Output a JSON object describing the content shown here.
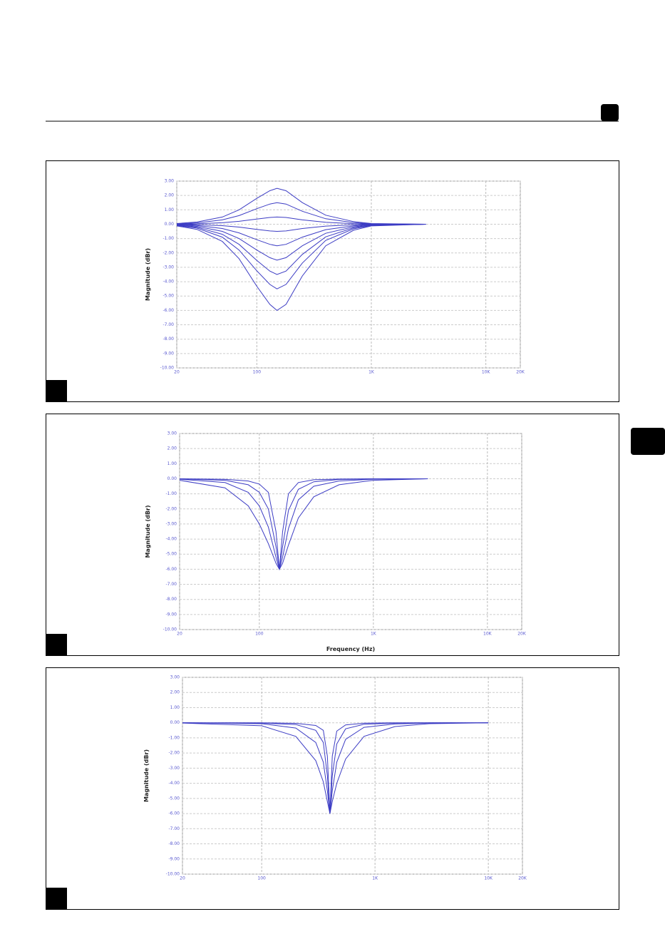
{
  "chart_data": [
    {
      "type": "line",
      "ylabel": "Magnitude (dBr)",
      "log_x": true,
      "grid": true,
      "color": "#3c3cc4",
      "xlim": [
        20,
        20000
      ],
      "ylim": [
        -10,
        3
      ],
      "xticks": [
        20,
        100,
        {
          "value": 1000,
          "label": "1K"
        },
        {
          "value": 10000,
          "label": "10K"
        },
        {
          "value": 20000,
          "label": "20K"
        }
      ],
      "yticks": [
        {
          "value": 3,
          "label": "3.00"
        },
        {
          "value": 2,
          "label": "2.00"
        },
        {
          "value": 1,
          "label": "1.00"
        },
        {
          "value": 0,
          "label": "0.00"
        },
        {
          "value": -1,
          "label": "-1.00"
        },
        {
          "value": -2,
          "label": "-2.00"
        },
        {
          "value": -3,
          "label": "-3.00"
        },
        {
          "value": -4,
          "label": "-4.00"
        },
        {
          "value": -5,
          "label": "-5.00"
        },
        {
          "value": -6,
          "label": "-6.00"
        },
        {
          "value": -7,
          "label": "-7.00"
        },
        {
          "value": -8,
          "label": "-8.00"
        },
        {
          "value": -9,
          "label": "-9.00"
        },
        {
          "value": -10,
          "label": "-10.00"
        }
      ],
      "x": [
        20,
        30,
        50,
        70,
        100,
        130,
        150,
        180,
        250,
        400,
        700,
        1000,
        3000
      ],
      "series": [
        {
          "values": [
            0.05,
            0.15,
            0.5,
            1,
            1.8,
            2.33,
            2.5,
            2.33,
            1.5,
            0.63,
            0.18,
            0.05,
            0
          ]
        },
        {
          "values": [
            0.03,
            0.09,
            0.3,
            0.6,
            1.08,
            1.4,
            1.5,
            1.4,
            0.9,
            0.38,
            0.11,
            0.03,
            0
          ]
        },
        {
          "values": [
            0.01,
            0.03,
            0.1,
            0.2,
            0.36,
            0.47,
            0.5,
            0.47,
            0.3,
            0.13,
            0.04,
            0.01,
            0
          ]
        },
        {
          "values": [
            -0.01,
            -0.03,
            -0.1,
            -0.2,
            -0.36,
            -0.47,
            -0.5,
            -0.47,
            -0.3,
            -0.13,
            -0.04,
            -0.01,
            0
          ]
        },
        {
          "values": [
            -0.03,
            -0.09,
            -0.3,
            -0.6,
            -1.08,
            -1.4,
            -1.5,
            -1.4,
            -0.9,
            -0.38,
            -0.11,
            -0.03,
            0
          ]
        },
        {
          "values": [
            -0.05,
            -0.15,
            -0.5,
            -1,
            -1.8,
            -2.33,
            -2.5,
            -2.33,
            -1.5,
            -0.63,
            -0.18,
            -0.05,
            0
          ]
        },
        {
          "values": [
            -0.07,
            -0.21,
            -0.7,
            -1.4,
            -2.52,
            -3.26,
            -3.5,
            -3.26,
            -2.1,
            -0.88,
            -0.25,
            -0.07,
            0
          ]
        },
        {
          "values": [
            -0.09,
            -0.27,
            -0.9,
            -1.8,
            -3.24,
            -4.19,
            -4.5,
            -4.19,
            -2.7,
            -1.13,
            -0.32,
            -0.09,
            0
          ]
        },
        {
          "values": [
            -0.12,
            -0.36,
            -1.2,
            -2.4,
            -4.32,
            -5.58,
            -6,
            -5.58,
            -3.6,
            -1.5,
            -0.42,
            -0.12,
            0
          ]
        }
      ]
    },
    {
      "type": "line",
      "ylabel": "Magnitude (dBr)",
      "xlabel": "Frequency (Hz)",
      "log_x": true,
      "grid": true,
      "color": "#3c3cc4",
      "xlim": [
        20,
        20000
      ],
      "ylim": [
        -10,
        3
      ],
      "xticks": [
        20,
        100,
        {
          "value": 1000,
          "label": "1K"
        },
        {
          "value": 10000,
          "label": "10K"
        },
        {
          "value": 20000,
          "label": "20K"
        }
      ],
      "yticks": [
        {
          "value": 3,
          "label": "3.00"
        },
        {
          "value": 2,
          "label": "2.00"
        },
        {
          "value": 1,
          "label": "1.00"
        },
        {
          "value": 0,
          "label": "0.00"
        },
        {
          "value": -1,
          "label": "-1.00"
        },
        {
          "value": -2,
          "label": "-2.00"
        },
        {
          "value": -3,
          "label": "-3.00"
        },
        {
          "value": -4,
          "label": "-4.00"
        },
        {
          "value": -5,
          "label": "-5.00"
        },
        {
          "value": -6,
          "label": "-6.00"
        },
        {
          "value": -7,
          "label": "-7.00"
        },
        {
          "value": -8,
          "label": "-8.00"
        },
        {
          "value": -9,
          "label": "-9.00"
        },
        {
          "value": -10,
          "label": "-10.00"
        }
      ],
      "x": [
        20,
        50,
        80,
        100,
        120,
        140,
        150,
        160,
        180,
        220,
        300,
        500,
        1000,
        3000
      ],
      "series": [
        {
          "values": [
            -0.1,
            -0.6,
            -1.8,
            -3,
            -4.3,
            -5.6,
            -6,
            -5.6,
            -4.4,
            -2.6,
            -1.2,
            -0.4,
            -0.1,
            0
          ]
        },
        {
          "values": [
            -0.03,
            -0.25,
            -0.9,
            -1.8,
            -3.2,
            -5.2,
            -6,
            -5.2,
            -3.3,
            -1.4,
            -0.5,
            -0.15,
            -0.03,
            0
          ]
        },
        {
          "values": [
            -0.01,
            -0.1,
            -0.4,
            -0.9,
            -2,
            -4.5,
            -6,
            -4.5,
            -2.1,
            -0.7,
            -0.2,
            -0.05,
            -0.01,
            0
          ]
        },
        {
          "values": [
            0,
            -0.04,
            -0.15,
            -0.35,
            -0.9,
            -3.5,
            -6,
            -3.5,
            -1,
            -0.25,
            -0.07,
            -0.02,
            0,
            0
          ]
        }
      ]
    },
    {
      "type": "line",
      "ylabel": "Magnitude (dBr)",
      "log_x": true,
      "grid": true,
      "color": "#3c3cc4",
      "xlim": [
        20,
        20000
      ],
      "ylim": [
        -10,
        3
      ],
      "xticks": [
        20,
        100,
        {
          "value": 1000,
          "label": "1K"
        },
        {
          "value": 10000,
          "label": "10K"
        },
        {
          "value": 20000,
          "label": "20K"
        }
      ],
      "yticks": [
        {
          "value": 3,
          "label": "3.00"
        },
        {
          "value": 2,
          "label": "2.00"
        },
        {
          "value": 1,
          "label": "1.00"
        },
        {
          "value": 0,
          "label": "0.00"
        },
        {
          "value": -1,
          "label": "-1.00"
        },
        {
          "value": -2,
          "label": "-2.00"
        },
        {
          "value": -3,
          "label": "-3.00"
        },
        {
          "value": -4,
          "label": "-4.00"
        },
        {
          "value": -5,
          "label": "-5.00"
        },
        {
          "value": -6,
          "label": "-6.00"
        },
        {
          "value": -7,
          "label": "-7.00"
        },
        {
          "value": -8,
          "label": "-8.00"
        },
        {
          "value": -9,
          "label": "-9.00"
        },
        {
          "value": -10,
          "label": "-10.00"
        }
      ],
      "x": [
        20,
        100,
        200,
        300,
        350,
        380,
        400,
        420,
        460,
        550,
        800,
        1500,
        3000,
        10000
      ],
      "series": [
        {
          "values": [
            -0.02,
            -0.2,
            -0.9,
            -2.5,
            -3.9,
            -5.2,
            -6,
            -5.2,
            -4,
            -2.4,
            -0.9,
            -0.25,
            -0.06,
            0
          ]
        },
        {
          "values": [
            0,
            -0.06,
            -0.35,
            -1.3,
            -2.6,
            -4.5,
            -6,
            -4.5,
            -2.6,
            -1.1,
            -0.3,
            -0.08,
            -0.02,
            0
          ]
        },
        {
          "values": [
            0,
            -0.02,
            -0.12,
            -0.5,
            -1.3,
            -3.5,
            -6,
            -3.5,
            -1.4,
            -0.4,
            -0.1,
            -0.03,
            0,
            0
          ]
        },
        {
          "values": [
            0,
            0,
            -0.04,
            -0.18,
            -0.5,
            -2.2,
            -6,
            -2.2,
            -0.55,
            -0.14,
            -0.03,
            0,
            0,
            0
          ]
        }
      ]
    }
  ]
}
